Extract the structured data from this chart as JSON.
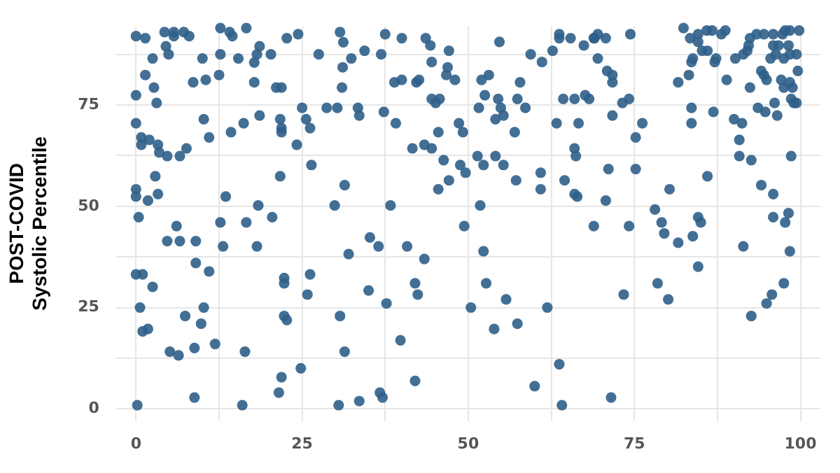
{
  "chart_data": {
    "type": "scatter",
    "ylabel": "POST-COVID\nSystolic Percentile",
    "xlim": [
      -3,
      103
    ],
    "ylim": [
      -3,
      94.5
    ],
    "xticks": [
      0,
      {
        "value": 12.5,
        "label": null
      },
      25,
      {
        "value": 37.5,
        "label": null
      },
      50,
      {
        "value": 62.5,
        "label": null
      },
      75,
      {
        "value": 87.5,
        "label": null
      },
      100
    ],
    "yticks": [
      0,
      {
        "value": 12.5,
        "label": null
      },
      25,
      {
        "value": 37.5,
        "label": null
      },
      50,
      {
        "value": 62.5,
        "label": null
      },
      75,
      {
        "value": 87.5,
        "label": null
      }
    ],
    "grid": true,
    "legend": false,
    "marker": "circle",
    "series": [
      {
        "color": "#2f5f8a",
        "x": [
          0,
          1.4,
          4.3,
          5.7,
          5.7,
          7.2,
          8,
          12.7,
          14.1,
          14.5,
          16.6,
          18.6,
          4.5,
          24.4,
          22.7,
          30.7,
          31.2,
          4.9,
          2.5,
          10,
          12.7,
          15.4,
          18.2,
          20.3,
          17.8,
          27.5,
          32.4,
          1.4,
          12.5,
          8.6,
          10.5,
          17.8,
          21.1,
          21.9,
          31.1,
          31,
          0,
          2.7,
          3.1,
          25,
          28.7,
          30.3,
          0,
          10.2,
          18.6,
          21.7,
          25.6,
          16.2,
          21.9,
          21.9,
          26.2,
          0.8,
          0.8,
          2,
          3.3,
          11,
          14.3,
          24.2,
          3.5,
          4.7,
          6.6,
          7.6,
          26.4,
          2.9,
          21.7,
          0,
          0,
          1.8,
          3.3,
          13.5,
          31.4,
          29.9,
          18.4,
          0.4,
          6.1,
          12.7,
          16.6,
          20.5,
          4.7,
          6.6,
          9,
          13.1,
          18.2,
          32,
          9,
          11,
          0,
          1,
          2.5,
          22.3,
          22.3,
          26.2,
          25.8,
          0.6,
          10.2,
          7.4,
          9.8,
          1,
          1.8,
          22.3,
          22.7,
          30.7,
          11.9,
          8.8,
          5.1,
          6.4,
          16.4,
          31.4,
          24.8,
          21.9,
          21.5,
          8.8,
          0.2,
          16,
          30.5,
          37.5,
          40,
          43.6,
          44.3,
          47.1,
          34.4,
          36.9,
          54.7,
          63.7,
          63.7,
          65.4,
          67.4,
          68.9,
          62.7,
          59.4,
          61.1,
          44.5,
          46.9,
          46.7,
          48,
          38.9,
          40,
          42.2,
          42.6,
          52,
          53.1,
          57.8,
          44.5,
          45.1,
          45.7,
          52.5,
          54.5,
          57.4,
          64.3,
          66,
          67.6,
          68.2,
          33.4,
          33.6,
          37.3,
          51.6,
          54.9,
          55.3,
          54.1,
          58.6,
          39.1,
          45.5,
          48.6,
          49.2,
          57,
          63.3,
          66.6,
          41.6,
          43.4,
          44.5,
          46.3,
          48.8,
          49.6,
          51.4,
          52.3,
          54.1,
          55.3,
          66,
          66.2,
          60.9,
          57.2,
          45.5,
          47.1,
          60.9,
          64.5,
          66,
          66.4,
          38.3,
          51.8,
          49.4,
          68.9,
          35.2,
          36.5,
          40.8,
          43.4,
          52.3,
          35,
          42,
          42.4,
          37.7,
          52.7,
          55.7,
          50.4,
          61.9,
          53.9,
          57.4,
          39.8,
          42,
          36.7,
          37.1,
          33.6,
          63.7,
          60,
          64.1,
          69.5,
          69,
          70.7,
          74.4,
          82.4,
          83.4,
          84.6,
          84.6,
          85.9,
          86.7,
          88.1,
          88.7,
          92.4,
          93.4,
          94.5,
          95.9,
          97.3,
          97.7,
          98.4,
          99.8,
          85.2,
          86,
          83.8,
          83.6,
          87.3,
          87.1,
          90.2,
          91.4,
          92,
          92.2,
          95.9,
          96.7,
          98.2,
          96.3,
          97.5,
          98.4,
          99.4,
          95.5,
          69.5,
          70.9,
          71.7,
          71.7,
          73.2,
          74.2,
          71.7,
          76.2,
          75.2,
          81.6,
          83.2,
          88.9,
          92.4,
          94.1,
          94.5,
          94.9,
          97.1,
          97.5,
          98.4,
          98.8,
          99.6,
          98.6,
          99,
          99.4,
          83.6,
          86.9,
          93.6,
          94.7,
          96.1,
          96.5,
          90,
          91.2,
          83.6,
          90.8,
          90.8,
          92.6,
          98.6,
          71.1,
          75.2,
          86,
          80.3,
          94.1,
          95.9,
          70.7,
          78.1,
          79.1,
          79.5,
          84.6,
          85,
          95.9,
          97.7,
          98.2,
          74.2,
          83.8,
          81.6,
          91.4,
          98.4,
          84.6,
          78.5,
          73.4,
          80.1,
          97.5,
          95.7,
          94.9,
          92.6,
          71.5
        ],
        "values": [
          92,
          91.5,
          93,
          93,
          92,
          93,
          92,
          94,
          93,
          92,
          94,
          89.5,
          89.5,
          92.5,
          91.5,
          93,
          90.5,
          87.5,
          86.5,
          86.5,
          87.5,
          86.5,
          87.5,
          87.5,
          85.5,
          87.5,
          86.5,
          82.4,
          82.4,
          80.6,
          81.2,
          80.6,
          79.3,
          79.3,
          84.3,
          79.3,
          77.4,
          79.3,
          75.5,
          74.3,
          74.3,
          74.3,
          70.5,
          71.5,
          72.4,
          71.5,
          71.5,
          70.5,
          69.3,
          68.3,
          69.3,
          67,
          65.2,
          66.4,
          65.2,
          67,
          68.3,
          65.2,
          63.3,
          62.4,
          62.4,
          64.3,
          60.2,
          57.4,
          57.4,
          54.2,
          52.4,
          51.4,
          53,
          52.4,
          55.2,
          50.2,
          50.2,
          47.3,
          45.1,
          46,
          46,
          47.3,
          41.4,
          41.4,
          41.4,
          40.1,
          40.1,
          38.2,
          36,
          33.9,
          33.2,
          33.2,
          30.1,
          32.3,
          31,
          33.2,
          28.2,
          25,
          25,
          22.9,
          21,
          19.1,
          19.7,
          22.9,
          21.9,
          22.9,
          16,
          15,
          14.1,
          13.2,
          14.1,
          14.1,
          10,
          7.8,
          4,
          2.8,
          0.9,
          0.9,
          0.9,
          92.5,
          91.5,
          91.5,
          89.7,
          88.4,
          88.4,
          87.5,
          90.6,
          92.5,
          91.5,
          91.5,
          89.7,
          91.5,
          88.4,
          87.5,
          85.6,
          85.6,
          84.3,
          82.4,
          81.2,
          80.6,
          81.2,
          80.6,
          81.2,
          81.2,
          82.4,
          80.6,
          76.5,
          75.5,
          76.5,
          77.4,
          76.5,
          76.5,
          76.5,
          76.5,
          77.4,
          76.5,
          74.3,
          72.4,
          73.3,
          74.3,
          74.3,
          72.4,
          71.5,
          74.3,
          70.5,
          68.3,
          70.5,
          68.3,
          68.3,
          70.5,
          70.5,
          64.3,
          65.2,
          64.3,
          61.4,
          60.2,
          58.3,
          62.4,
          60.2,
          62.4,
          60.2,
          64.3,
          62.4,
          58.3,
          56.4,
          54.2,
          56.4,
          54.2,
          56.4,
          53,
          52.4,
          50.2,
          50.2,
          45.1,
          45.1,
          42.3,
          40.1,
          40.1,
          37,
          38.9,
          29.2,
          31,
          28.2,
          26,
          31,
          27,
          25,
          25,
          19.7,
          21,
          16.9,
          6.9,
          4,
          2.8,
          1.9,
          11,
          5.6,
          0.9,
          92.5,
          91.5,
          91.5,
          92.5,
          94,
          91.5,
          92.5,
          90.6,
          93.4,
          93.4,
          92.5,
          93.4,
          91.5,
          92.5,
          92.5,
          92.5,
          92.5,
          93.4,
          93.4,
          93.4,
          88.4,
          88.4,
          86.5,
          85.6,
          86.5,
          85.6,
          86.5,
          87.5,
          88.4,
          89.7,
          89.7,
          89.7,
          89.7,
          87.5,
          86.5,
          87.5,
          87.5,
          86.5,
          86.5,
          83.4,
          82.4,
          80.6,
          75.5,
          76.5,
          72.4,
          70.5,
          67,
          80.6,
          82.4,
          81.2,
          79.3,
          83.4,
          82.4,
          81.2,
          81.2,
          79.3,
          80.6,
          79.3,
          83.4,
          76.5,
          75.5,
          75.5,
          74.3,
          73.3,
          74.3,
          73.3,
          75.5,
          72.4,
          71.5,
          70.5,
          70.5,
          66.4,
          62.4,
          61.4,
          62.4,
          59.2,
          59.2,
          57.4,
          54.2,
          55.2,
          53,
          51.4,
          49.2,
          46,
          43.3,
          47.3,
          46,
          47.3,
          46,
          48.3,
          45.1,
          42.6,
          41,
          40.1,
          38.9,
          35.1,
          31,
          28.2,
          27,
          31,
          28.2,
          26,
          22.9,
          2.8
        ]
      }
    ]
  }
}
